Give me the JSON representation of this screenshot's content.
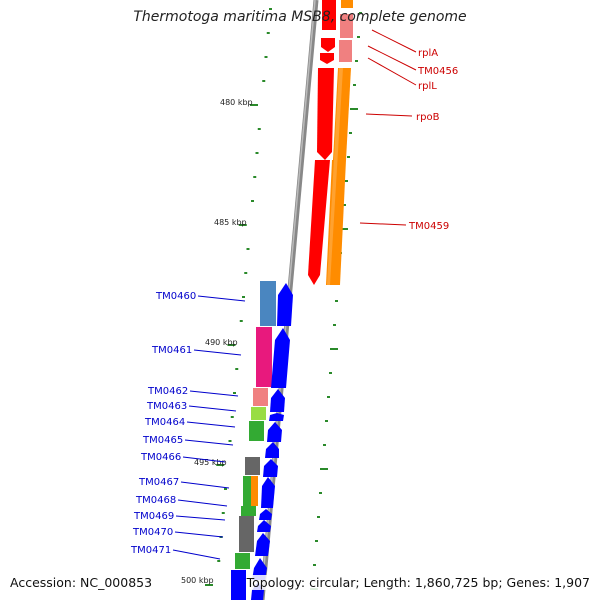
{
  "title": "Thermotoga maritima MSB8, complete genome",
  "accession": "Accession: NC_000853",
  "topology": "Topology: circular; Length: 1,860,725 bp; Genes: 1,907",
  "ruler": [
    "480 kbp",
    "485 kbp",
    "490 kbp",
    "495 kbp",
    "500 kbp"
  ],
  "colors": {
    "red_genes": "#ff0000",
    "orange_genes": "#ff8c00",
    "blue_genes": "#0000ff",
    "pink": "#e8197d",
    "salmon": "#f08080",
    "steel_blue": "#4a86c0",
    "green": "#33aa33",
    "light_green": "#99dd44",
    "grey": "#666666",
    "backbone": "#888888",
    "tick": "#2a8a2a"
  },
  "genes_top": [
    {
      "name": "rplA",
      "color": "#cc0000"
    },
    {
      "name": "TM0456",
      "color": "#cc0000"
    },
    {
      "name": "rplL",
      "color": "#cc0000"
    },
    {
      "name": "rpoB",
      "color": "#cc0000"
    },
    {
      "name": "TM0459",
      "color": "#cc0000"
    }
  ],
  "genes_bottom": [
    {
      "name": "TM0460",
      "color": "#0000cc"
    },
    {
      "name": "TM0461",
      "color": "#0000cc"
    },
    {
      "name": "TM0462",
      "color": "#0000cc"
    },
    {
      "name": "TM0463",
      "color": "#0000cc"
    },
    {
      "name": "TM0464",
      "color": "#0000cc"
    },
    {
      "name": "TM0465",
      "color": "#0000cc"
    },
    {
      "name": "TM0466",
      "color": "#0000cc"
    },
    {
      "name": "TM0467",
      "color": "#0000cc"
    },
    {
      "name": "TM0468",
      "color": "#0000cc"
    },
    {
      "name": "TM0469",
      "color": "#0000cc"
    },
    {
      "name": "TM0470",
      "color": "#0000cc"
    },
    {
      "name": "TM0471",
      "color": "#0000cc"
    }
  ]
}
